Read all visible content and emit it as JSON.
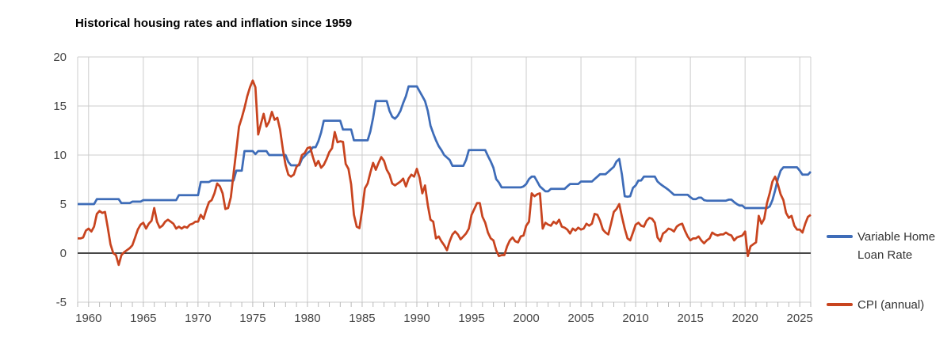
{
  "axis_style": {
    "grid_color": "#cccccc",
    "zero_line_color": "#474747",
    "tick_color": "#bbbbbb",
    "label_color": "#464646",
    "title_color": "#000000",
    "legend_text_color": "#333333",
    "background": "#ffffff"
  },
  "chart_data": {
    "type": "line",
    "title": "Historical housing rates and inflation since 1959",
    "xlabel": "",
    "ylabel": "",
    "x_unit": "year (quarterly data points)",
    "y_unit": "percent",
    "x_min": 1959,
    "x_max": 2026,
    "y_min": -5,
    "y_max": 20,
    "x_ticks": [
      1960,
      1965,
      1970,
      1975,
      1980,
      1985,
      1990,
      1995,
      2000,
      2005,
      2010,
      2015,
      2020,
      2025
    ],
    "y_ticks": [
      20,
      15,
      10,
      5,
      0,
      -5
    ],
    "minor_x_tick_step": 1,
    "grid": true,
    "zero_baseline": true,
    "legend_position": "right",
    "x_start": 1959,
    "x_step": 0.25,
    "series": [
      {
        "name": "Variable Home Loan Rate",
        "color": "#3e6cb8",
        "values": [
          5,
          5,
          5,
          5,
          5,
          5,
          5,
          5.5,
          5.5,
          5.5,
          5.5,
          5.5,
          5.5,
          5.5,
          5.5,
          5.5,
          5.1,
          5.1,
          5.1,
          5.1,
          5.25,
          5.25,
          5.25,
          5.25,
          5.4,
          5.4,
          5.4,
          5.4,
          5.4,
          5.4,
          5.4,
          5.4,
          5.4,
          5.4,
          5.4,
          5.4,
          5.4,
          5.9,
          5.9,
          5.9,
          5.9,
          5.9,
          5.9,
          5.9,
          5.9,
          7.25,
          7.25,
          7.25,
          7.25,
          7.4,
          7.4,
          7.4,
          7.4,
          7.4,
          7.4,
          7.4,
          7.4,
          7.4,
          8.4,
          8.4,
          8.4,
          10.4,
          10.4,
          10.4,
          10.4,
          10.1,
          10.4,
          10.4,
          10.4,
          10.4,
          10,
          10,
          10,
          10,
          10,
          10,
          10,
          9.3,
          8.95,
          8.95,
          8.95,
          8.95,
          9.6,
          9.9,
          10.2,
          10.4,
          10.8,
          10.8,
          11.4,
          12.3,
          13.5,
          13.5,
          13.5,
          13.5,
          13.5,
          13.5,
          13.5,
          12.6,
          12.6,
          12.6,
          12.6,
          11.5,
          11.5,
          11.5,
          11.5,
          11.5,
          11.5,
          12.4,
          13.8,
          15.5,
          15.5,
          15.5,
          15.5,
          15.5,
          14.5,
          13.9,
          13.7,
          14,
          14.5,
          15.3,
          16,
          17,
          17,
          17,
          17,
          16.5,
          16,
          15.5,
          14.5,
          13,
          12.2,
          11.5,
          10.9,
          10.5,
          10,
          9.75,
          9.5,
          8.9,
          8.9,
          8.9,
          8.9,
          8.9,
          9.5,
          10.5,
          10.5,
          10.5,
          10.5,
          10.5,
          10.5,
          10.5,
          9.9,
          9.35,
          8.7,
          7.55,
          7.2,
          6.7,
          6.7,
          6.7,
          6.7,
          6.7,
          6.7,
          6.7,
          6.7,
          6.8,
          7.05,
          7.55,
          7.8,
          7.8,
          7.3,
          6.8,
          6.55,
          6.3,
          6.3,
          6.55,
          6.55,
          6.55,
          6.55,
          6.55,
          6.55,
          6.8,
          7.05,
          7.05,
          7.05,
          7.05,
          7.3,
          7.3,
          7.3,
          7.3,
          7.3,
          7.55,
          7.8,
          8.05,
          8.05,
          8.05,
          8.3,
          8.55,
          8.8,
          9.35,
          9.6,
          8,
          5.8,
          5.75,
          5.8,
          6.65,
          6.9,
          7.4,
          7.4,
          7.8,
          7.8,
          7.8,
          7.8,
          7.8,
          7.3,
          7.05,
          6.85,
          6.65,
          6.45,
          6.2,
          5.95,
          5.95,
          5.95,
          5.95,
          5.95,
          5.95,
          5.7,
          5.5,
          5.5,
          5.65,
          5.65,
          5.4,
          5.35,
          5.35,
          5.35,
          5.35,
          5.35,
          5.35,
          5.35,
          5.35,
          5.45,
          5.45,
          5.2,
          5,
          4.85,
          4.85,
          4.6,
          4.6,
          4.6,
          4.6,
          4.6,
          4.6,
          4.6,
          4.6,
          4.6,
          4.75,
          5.4,
          6.4,
          7.6,
          8.4,
          8.75,
          8.75,
          8.75,
          8.75,
          8.75,
          8.75,
          8.4,
          8,
          8,
          8,
          8.3
        ]
      },
      {
        "name": "CPI (annual)",
        "color": "#c8441f",
        "values": [
          1.5,
          1.5,
          1.6,
          2.3,
          2.5,
          2.2,
          2.7,
          4,
          4.3,
          4.1,
          4.2,
          2.6,
          0.9,
          0,
          -0.2,
          -1.2,
          -0.2,
          0.1,
          0.3,
          0.5,
          0.8,
          1.6,
          2.4,
          2.9,
          3.1,
          2.5,
          3,
          3.3,
          4.6,
          3.2,
          2.6,
          2.8,
          3.2,
          3.4,
          3.2,
          3,
          2.5,
          2.7,
          2.5,
          2.7,
          2.6,
          2.9,
          3,
          3.2,
          3.2,
          3.9,
          3.5,
          4.4,
          5.2,
          5.4,
          6.1,
          7.1,
          6.8,
          6.1,
          4.5,
          4.6,
          5.7,
          8.1,
          10.5,
          12.9,
          13.8,
          14.8,
          16,
          16.9,
          17.6,
          16.9,
          12.1,
          13.2,
          14.2,
          12.9,
          13.4,
          14.4,
          13.6,
          13.8,
          12.6,
          10.6,
          9,
          8,
          7.8,
          8,
          8.8,
          9.1,
          10,
          10.2,
          10.7,
          10.8,
          9.8,
          8.9,
          9.4,
          8.7,
          9,
          9.6,
          10.3,
          10.7,
          12.35,
          11.3,
          11.4,
          11.35,
          9.1,
          8.6,
          7,
          3.9,
          2.7,
          2.55,
          4.4,
          6.6,
          7.1,
          8.2,
          9.2,
          8.5,
          9.2,
          9.8,
          9.4,
          8.5,
          8,
          7.1,
          6.9,
          7.1,
          7.3,
          7.6,
          6.8,
          7.6,
          8,
          7.8,
          8.6,
          7.7,
          6.1,
          6.9,
          4.9,
          3.4,
          3.2,
          1.5,
          1.7,
          1.2,
          0.8,
          0.3,
          1.2,
          1.9,
          2.2,
          1.9,
          1.4,
          1.7,
          2,
          2.5,
          3.9,
          4.5,
          5.1,
          5.1,
          3.7,
          3.1,
          2.1,
          1.5,
          1.3,
          0.3,
          -0.3,
          -0.2,
          -0.2,
          0.7,
          1.3,
          1.6,
          1.2,
          1.1,
          1.7,
          1.8,
          2.8,
          3.2,
          6.1,
          5.8,
          6,
          6.1,
          2.5,
          3.1,
          2.9,
          2.8,
          3.2,
          3,
          3.4,
          2.7,
          2.6,
          2.4,
          2,
          2.5,
          2.3,
          2.6,
          2.4,
          2.5,
          3,
          2.8,
          3,
          4,
          3.9,
          3.3,
          2.4,
          2.1,
          1.9,
          3,
          4.2,
          4.5,
          5,
          3.7,
          2.5,
          1.5,
          1.3,
          2.1,
          2.9,
          3.1,
          2.8,
          2.7,
          3.3,
          3.6,
          3.5,
          3.1,
          1.6,
          1.2,
          2,
          2.2,
          2.5,
          2.4,
          2.2,
          2.7,
          2.9,
          3,
          2.3,
          1.7,
          1.3,
          1.5,
          1.5,
          1.7,
          1.3,
          1,
          1.3,
          1.5,
          2.1,
          1.9,
          1.8,
          1.9,
          1.9,
          2.1,
          1.9,
          1.8,
          1.3,
          1.6,
          1.7,
          1.8,
          2.2,
          -0.3,
          0.7,
          0.9,
          1.1,
          3.8,
          3,
          3.5,
          5.1,
          6.1,
          7.3,
          7.8,
          7,
          6,
          5.4,
          4.1,
          3.6,
          3.8,
          2.8,
          2.4,
          2.4,
          2.1,
          3,
          3.7,
          3.9
        ]
      }
    ]
  }
}
